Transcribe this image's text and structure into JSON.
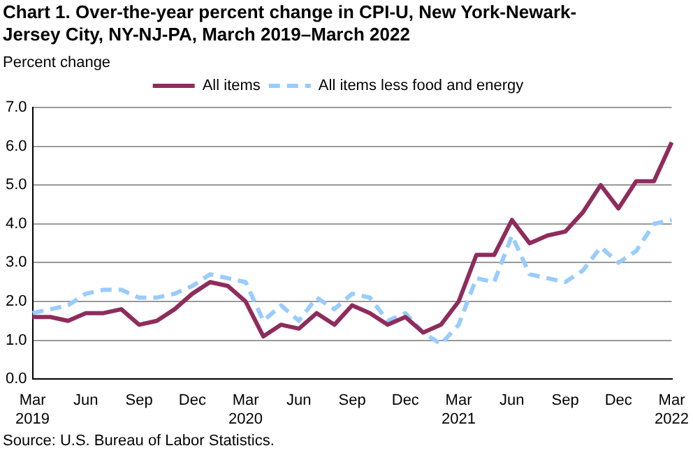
{
  "chart_data": {
    "type": "line",
    "title": "Chart 1. Over-the-year percent change in CPI-U, New York-Newark-Jersey City, NY-NJ-PA,  March 2019–March 2022",
    "ylabel": "Percent change",
    "annotations": [
      "Source: U.S. Bureau of Labor Statistics."
    ],
    "categories": [
      "Mar 2019",
      null,
      null,
      "Jun",
      null,
      null,
      "Sep",
      null,
      null,
      "Dec",
      null,
      null,
      "Mar 2020",
      null,
      null,
      "Jun",
      null,
      null,
      "Sep",
      null,
      null,
      "Dec",
      null,
      null,
      "Mar 2021",
      null,
      null,
      "Jun",
      null,
      null,
      "Sep",
      null,
      null,
      "Dec",
      null,
      null,
      "Mar 2022"
    ],
    "series": [
      {
        "name": "All items",
        "color": "#8e2c5c",
        "line_style": "solid",
        "values": [
          1.6,
          1.6,
          1.5,
          1.7,
          1.7,
          1.8,
          1.4,
          1.5,
          1.8,
          2.2,
          2.5,
          2.4,
          2.0,
          1.1,
          1.4,
          1.3,
          1.7,
          1.4,
          1.9,
          1.7,
          1.4,
          1.6,
          1.2,
          1.4,
          2.0,
          3.2,
          3.2,
          4.1,
          3.5,
          3.7,
          3.8,
          4.3,
          5.0,
          4.4,
          5.1,
          5.1,
          6.1
        ]
      },
      {
        "name": "All items less food and energy",
        "color": "#99ccff",
        "line_style": "dashed",
        "values": [
          1.7,
          1.8,
          1.9,
          2.2,
          2.3,
          2.3,
          2.1,
          2.1,
          2.2,
          2.4,
          2.7,
          2.6,
          2.5,
          1.5,
          1.9,
          1.5,
          2.1,
          1.8,
          2.2,
          2.1,
          1.5,
          1.7,
          1.2,
          0.9,
          1.4,
          2.6,
          2.5,
          3.7,
          2.7,
          2.6,
          2.5,
          2.8,
          3.4,
          3.0,
          3.3,
          4.0,
          4.1
        ]
      }
    ],
    "ylim": [
      0,
      7
    ],
    "yticks": [
      {
        "value": 0,
        "label": "0.0"
      },
      {
        "value": 1,
        "label": "1.0"
      },
      {
        "value": 2,
        "label": "2.0"
      },
      {
        "value": 3,
        "label": "3.0"
      },
      {
        "value": 4,
        "label": "4.0"
      },
      {
        "value": 5,
        "label": "5.0"
      },
      {
        "value": 6,
        "label": "6.0"
      },
      {
        "value": 7,
        "label": "7.0"
      }
    ],
    "grid": "y",
    "legend": "top",
    "marker": "none"
  }
}
